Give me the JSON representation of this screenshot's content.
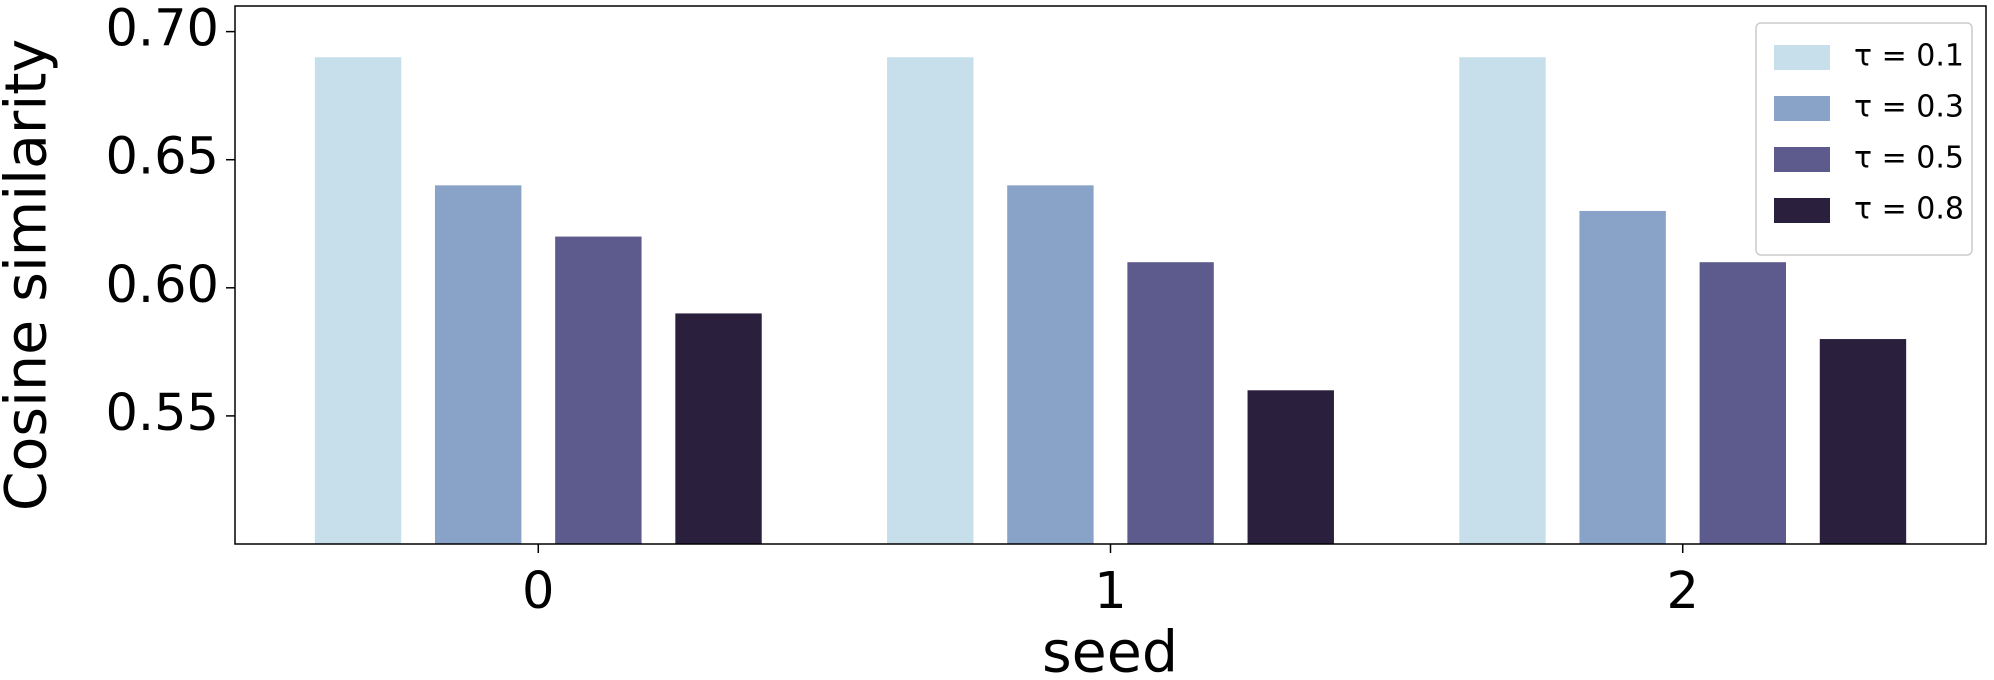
{
  "chart_data": {
    "type": "bar",
    "x_label": "seed",
    "y_label": "Cosine similarity",
    "categories": [
      "0",
      "1",
      "2"
    ],
    "series": [
      {
        "name": "τ = 0.1",
        "color": "#c6dfea",
        "values": [
          0.69,
          0.69,
          0.69
        ]
      },
      {
        "name": "τ = 0.3",
        "color": "#88a2c8",
        "values": [
          0.64,
          0.64,
          0.63
        ]
      },
      {
        "name": "τ = 0.5",
        "color": "#5d5b8d",
        "values": [
          0.62,
          0.61,
          0.61
        ]
      },
      {
        "name": "τ = 0.8",
        "color": "#2b1f3e",
        "values": [
          0.59,
          0.56,
          0.58
        ]
      }
    ],
    "ylim": [
      0.5,
      0.71
    ],
    "yticks": [
      {
        "value": 0.55,
        "label": "0.55"
      },
      {
        "value": 0.6,
        "label": "0.60"
      },
      {
        "value": 0.65,
        "label": "0.65"
      },
      {
        "value": 0.7,
        "label": "0.70"
      }
    ],
    "legend": "upper right",
    "grid": false
  }
}
